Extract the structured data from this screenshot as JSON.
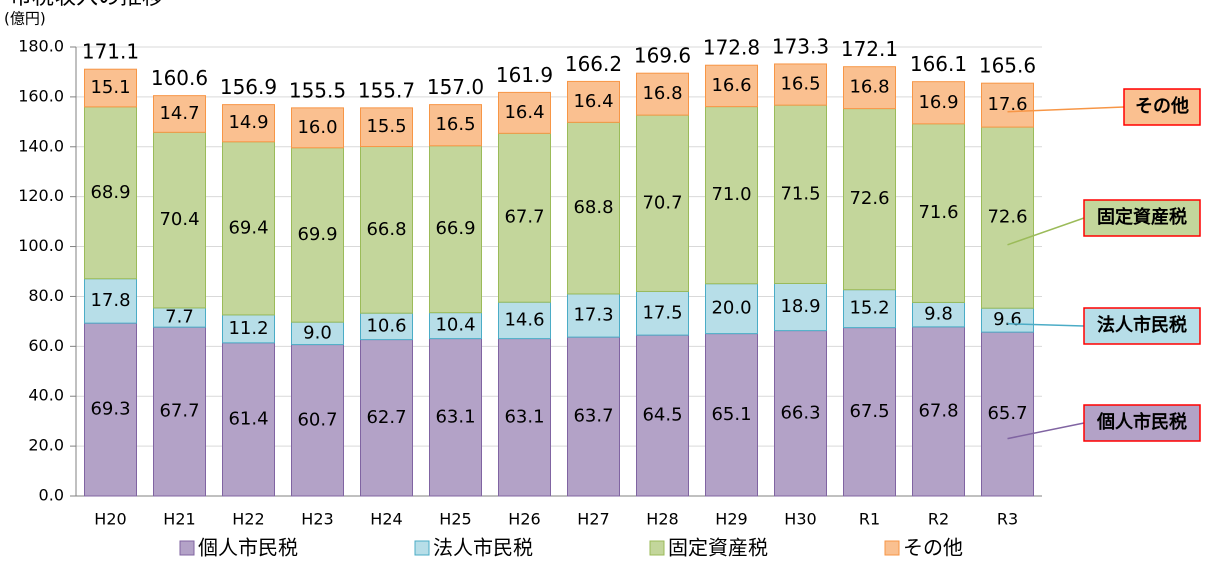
{
  "chart_data": {
    "type": "stacked_bar",
    "title": "市税収入の推移",
    "unit_label": "(億円)",
    "categories": [
      "H20",
      "H21",
      "H22",
      "H23",
      "H24",
      "H25",
      "H26",
      "H27",
      "H28",
      "H29",
      "H30",
      "R1",
      "R2",
      "R3"
    ],
    "series": [
      {
        "name": "個人市民税",
        "color": "#b3a2c7",
        "border": "#8064a2",
        "values": [
          69.3,
          67.7,
          61.4,
          60.7,
          62.7,
          63.1,
          63.1,
          63.7,
          64.5,
          65.1,
          66.3,
          67.5,
          67.8,
          65.7
        ],
        "value_labels": [
          "69.3",
          "67.7",
          "61.4",
          "60.7",
          "62.7",
          "63.1",
          "63.1",
          "63.7",
          "64.5",
          "65.1",
          "66.3",
          "67.5",
          "67.8",
          "65.7"
        ]
      },
      {
        "name": "法人市民税",
        "color": "#b7dee8",
        "border": "#4bacc6",
        "values": [
          17.8,
          7.7,
          11.2,
          9.0,
          10.6,
          10.4,
          14.6,
          17.3,
          17.5,
          20.0,
          18.9,
          15.2,
          9.8,
          9.6
        ],
        "value_labels": [
          "17.8",
          "7.7",
          "11.2",
          "9.0",
          "10.6",
          "10.4",
          "14.6",
          "17.3",
          "17.5",
          "20.0",
          "18.9",
          "15.2",
          "9.8",
          "9.6"
        ]
      },
      {
        "name": "固定資産税",
        "color": "#c3d69b",
        "border": "#9bbb59",
        "values": [
          68.9,
          70.4,
          69.4,
          69.9,
          66.8,
          66.9,
          67.7,
          68.8,
          70.7,
          71.0,
          71.5,
          72.6,
          71.6,
          72.6
        ],
        "value_labels": [
          "68.9",
          "70.4",
          "69.4",
          "69.9",
          "66.8",
          "66.9",
          "67.7",
          "68.8",
          "70.7",
          "71.0",
          "71.5",
          "72.6",
          "71.6",
          "72.6"
        ]
      },
      {
        "name": "その他",
        "color": "#fac090",
        "border": "#f79646",
        "values": [
          15.1,
          14.7,
          14.9,
          16.0,
          15.5,
          16.5,
          16.4,
          16.4,
          16.8,
          16.6,
          16.5,
          16.8,
          16.9,
          17.6
        ],
        "value_labels": [
          "15.1",
          "14.7",
          "14.9",
          "16.0",
          "15.5",
          "16.5",
          "16.4",
          "16.4",
          "16.8",
          "16.6",
          "16.5",
          "16.8",
          "16.9",
          "17.6"
        ]
      }
    ],
    "total_labels": [
      "171.1",
      "160.6",
      "156.9",
      "155.5",
      "155.7",
      "157.0",
      "161.9",
      "166.2",
      "169.6",
      "172.8",
      "173.3",
      "172.1",
      "166.1",
      "165.6"
    ],
    "ylim": [
      0,
      180
    ],
    "yticks": [
      {
        "value": 0,
        "label": "0.0"
      },
      {
        "value": 20,
        "label": "20.0"
      },
      {
        "value": 40,
        "label": "40.0"
      },
      {
        "value": 60,
        "label": "60.0"
      },
      {
        "value": 80,
        "label": "80.0"
      },
      {
        "value": 100,
        "label": "100.0"
      },
      {
        "value": 120,
        "label": "120.0"
      },
      {
        "value": 140,
        "label": "140.0"
      },
      {
        "value": 160,
        "label": "160.0"
      },
      {
        "value": 180,
        "label": "180.0"
      }
    ],
    "grid": true,
    "callout_border": "#ff0000"
  }
}
